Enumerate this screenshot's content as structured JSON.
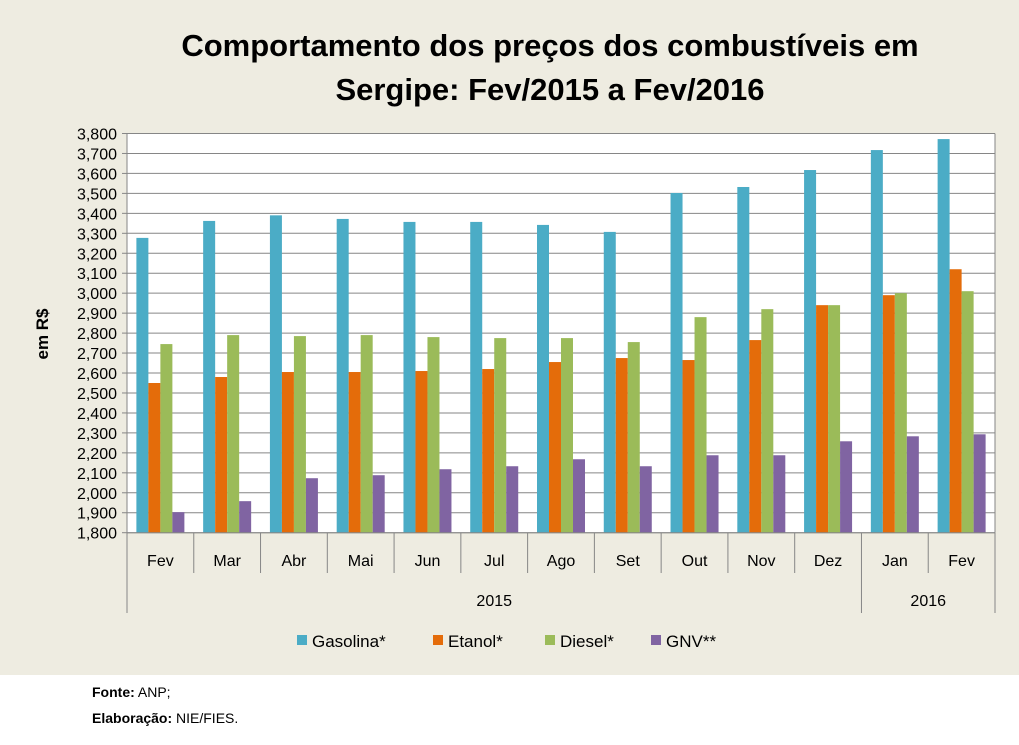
{
  "chart_data": {
    "type": "bar",
    "title_line1": "Comportamento dos preços dos combustíveis em",
    "title_line2": "Sergipe: Fev/2015 a Fev/2016",
    "ylabel": "em R$",
    "xlabel": "",
    "ylim": [
      1800,
      3800
    ],
    "ytick_step": 100,
    "yticks": [
      "1,800",
      "1,900",
      "2,000",
      "2,100",
      "2,200",
      "2,300",
      "2,400",
      "2,500",
      "2,600",
      "2,700",
      "2,800",
      "2,900",
      "3,000",
      "3,100",
      "3,200",
      "3,300",
      "3,400",
      "3,500",
      "3,600",
      "3,700",
      "3,800"
    ],
    "grid": true,
    "categories": [
      "Fev",
      "Mar",
      "Abr",
      "Mai",
      "Jun",
      "Jul",
      "Ago",
      "Set",
      "Out",
      "Nov",
      "Dez",
      "Jan",
      "Fev"
    ],
    "year_groups": [
      {
        "label": "2015",
        "count": 11
      },
      {
        "label": "2016",
        "count": 2
      }
    ],
    "legend_position": "bottom",
    "series": [
      {
        "name": "Gasolina*",
        "color": "#4bacc6",
        "values": [
          3277,
          3362,
          3390,
          3372,
          3357,
          3357,
          3342,
          3307,
          3502,
          3532,
          3617,
          3717,
          3772
        ]
      },
      {
        "name": "Etanol*",
        "color": "#e46c0a",
        "values": [
          2550,
          2580,
          2605,
          2605,
          2610,
          2620,
          2655,
          2675,
          2665,
          2765,
          2940,
          2990,
          3120
        ]
      },
      {
        "name": "Diesel*",
        "color": "#9bbb59",
        "values": [
          2745,
          2790,
          2785,
          2790,
          2780,
          2775,
          2775,
          2755,
          2880,
          2920,
          2940,
          3000,
          3010
        ]
      },
      {
        "name": "GNV**",
        "color": "#8064a2",
        "values": [
          1903,
          1958,
          2073,
          2088,
          2118,
          2133,
          2168,
          2133,
          2188,
          2188,
          2258,
          2283,
          2293
        ]
      }
    ]
  },
  "footer": {
    "source_label": "Fonte:",
    "source_value": "ANP;",
    "prep_label": "Elaboração:",
    "prep_value": "NIE/FIES."
  }
}
